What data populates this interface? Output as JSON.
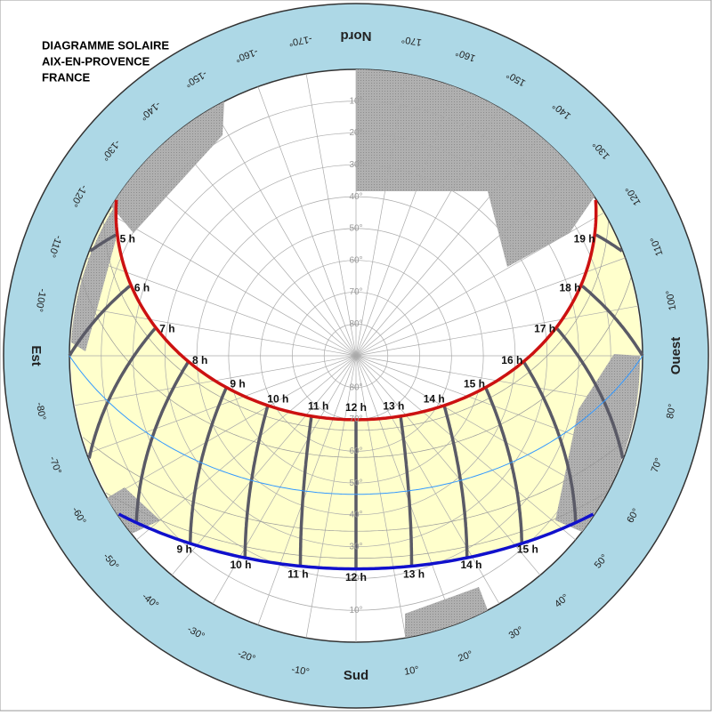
{
  "header": {
    "lines": [
      "DIAGRAMME SOLAIRE",
      "AIX-EN-PROVENCE",
      "FRANCE"
    ]
  },
  "ring_labels": [
    "-170°",
    "-160°",
    "-150°",
    "-140°",
    "-130°",
    "-120°",
    "-110°",
    "-100°",
    "Est",
    "-80°",
    "-70°",
    "-60°",
    "-50°",
    "-40°",
    "-30°",
    "-20°",
    "-10°",
    "Sud",
    "10°",
    "20°",
    "30°",
    "40°",
    "50°",
    "60°",
    "70°",
    "80°",
    "Ouest",
    "100°",
    "110°",
    "120°",
    "130°",
    "140°",
    "150°",
    "160°",
    "170°",
    "Nord"
  ],
  "altitude_labels": [
    "10°",
    "20°",
    "30°",
    "40°",
    "50°",
    "60°",
    "70°",
    "80°"
  ],
  "summer_hours": [
    "5 h",
    "6 h",
    "7 h",
    "8 h",
    "9 h",
    "10 h",
    "11 h",
    "12 h",
    "13 h",
    "14 h",
    "15 h",
    "16 h",
    "17 h",
    "18 h",
    "19 h"
  ],
  "winter_hours": [
    "9 h",
    "10 h",
    "11 h",
    "12 h",
    "13 h",
    "14 h",
    "15 h"
  ]
}
